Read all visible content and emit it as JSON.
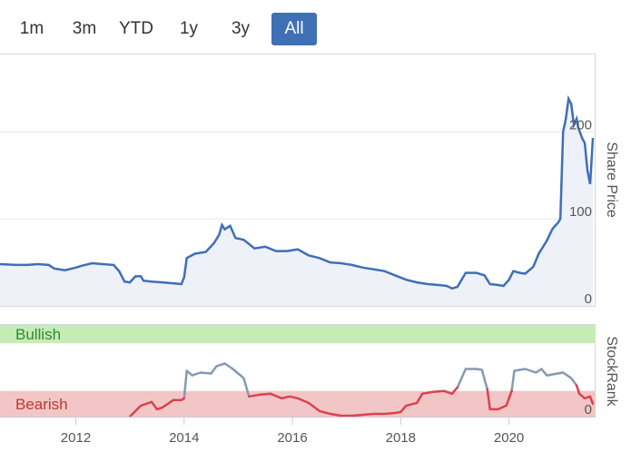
{
  "range_selector": {
    "buttons": [
      "1m",
      "3m",
      "YTD",
      "1y",
      "3y",
      "All"
    ],
    "active": "All",
    "active_color": "#3f6fb5"
  },
  "chart_data": [
    {
      "type": "line",
      "name": "share-price",
      "ylabel": "Share Price",
      "yticks": [
        0,
        100,
        200
      ],
      "ylim": [
        0,
        290
      ],
      "xlim": [
        2010.6,
        2021.6
      ],
      "line_color": "#3f6fb5",
      "fill_color": "#eef1f8",
      "points": [
        [
          2010.6,
          48
        ],
        [
          2010.9,
          47
        ],
        [
          2011.1,
          47
        ],
        [
          2011.3,
          48
        ],
        [
          2011.5,
          47
        ],
        [
          2011.6,
          43
        ],
        [
          2011.8,
          41
        ],
        [
          2012.0,
          44
        ],
        [
          2012.1,
          46
        ],
        [
          2012.3,
          49
        ],
        [
          2012.5,
          48
        ],
        [
          2012.7,
          47
        ],
        [
          2012.8,
          40
        ],
        [
          2012.9,
          28
        ],
        [
          2013.0,
          27
        ],
        [
          2013.1,
          34
        ],
        [
          2013.2,
          34
        ],
        [
          2013.25,
          29
        ],
        [
          2013.4,
          28
        ],
        [
          2013.6,
          27
        ],
        [
          2013.8,
          26
        ],
        [
          2013.95,
          25
        ],
        [
          2014.0,
          33
        ],
        [
          2014.05,
          55
        ],
        [
          2014.2,
          60
        ],
        [
          2014.4,
          62
        ],
        [
          2014.55,
          72
        ],
        [
          2014.65,
          82
        ],
        [
          2014.7,
          93
        ],
        [
          2014.75,
          88
        ],
        [
          2014.85,
          92
        ],
        [
          2014.95,
          78
        ],
        [
          2015.1,
          76
        ],
        [
          2015.3,
          66
        ],
        [
          2015.5,
          68
        ],
        [
          2015.7,
          63
        ],
        [
          2015.9,
          63
        ],
        [
          2016.1,
          65
        ],
        [
          2016.3,
          58
        ],
        [
          2016.5,
          55
        ],
        [
          2016.7,
          50
        ],
        [
          2016.9,
          49
        ],
        [
          2017.1,
          47
        ],
        [
          2017.3,
          44
        ],
        [
          2017.5,
          42
        ],
        [
          2017.7,
          40
        ],
        [
          2017.9,
          35
        ],
        [
          2018.1,
          30
        ],
        [
          2018.3,
          27
        ],
        [
          2018.5,
          25
        ],
        [
          2018.7,
          24
        ],
        [
          2018.85,
          23
        ],
        [
          2018.95,
          20
        ],
        [
          2019.05,
          22
        ],
        [
          2019.2,
          38
        ],
        [
          2019.4,
          38
        ],
        [
          2019.55,
          35
        ],
        [
          2019.65,
          25
        ],
        [
          2019.8,
          24
        ],
        [
          2019.9,
          23
        ],
        [
          2020.0,
          30
        ],
        [
          2020.08,
          40
        ],
        [
          2020.2,
          38
        ],
        [
          2020.3,
          37
        ],
        [
          2020.45,
          45
        ],
        [
          2020.55,
          60
        ],
        [
          2020.7,
          75
        ],
        [
          2020.8,
          88
        ],
        [
          2020.85,
          92
        ],
        [
          2020.9,
          95
        ],
        [
          2020.95,
          100
        ],
        [
          2021.0,
          200
        ],
        [
          2021.05,
          215
        ],
        [
          2021.1,
          238
        ],
        [
          2021.15,
          232
        ],
        [
          2021.2,
          208
        ],
        [
          2021.25,
          215
        ],
        [
          2021.28,
          205
        ],
        [
          2021.35,
          193
        ],
        [
          2021.4,
          187
        ],
        [
          2021.45,
          155
        ],
        [
          2021.5,
          140
        ],
        [
          2021.55,
          193
        ]
      ]
    },
    {
      "type": "line",
      "name": "stockrank",
      "ylabel": "StockRank",
      "yticks": [
        0
      ],
      "ylim": [
        0,
        100
      ],
      "xlim": [
        2010.6,
        2021.6
      ],
      "xticks": [
        "2012",
        "2014",
        "2016",
        "2018",
        "2020"
      ],
      "bands": [
        {
          "label": "Bullish",
          "from": 80,
          "to": 100,
          "color": "#c6ecb6",
          "text_color": "#2e8b2e"
        },
        {
          "label": "Bearish",
          "from": 0,
          "to": 28,
          "color": "#f2c6c6",
          "text_color": "#c0392b"
        }
      ],
      "threshold": 30,
      "above_color": "#8899b0",
      "below_color": "#d9434e",
      "points": [
        [
          2013.0,
          0
        ],
        [
          2013.2,
          12
        ],
        [
          2013.3,
          14
        ],
        [
          2013.4,
          16
        ],
        [
          2013.5,
          8
        ],
        [
          2013.6,
          10
        ],
        [
          2013.7,
          14
        ],
        [
          2013.8,
          18
        ],
        [
          2013.95,
          18
        ],
        [
          2014.0,
          20
        ],
        [
          2014.05,
          50
        ],
        [
          2014.15,
          45
        ],
        [
          2014.3,
          48
        ],
        [
          2014.5,
          47
        ],
        [
          2014.6,
          55
        ],
        [
          2014.75,
          58
        ],
        [
          2014.9,
          52
        ],
        [
          2015.0,
          47
        ],
        [
          2015.1,
          42
        ],
        [
          2015.2,
          22
        ],
        [
          2015.4,
          24
        ],
        [
          2015.6,
          25
        ],
        [
          2015.8,
          20
        ],
        [
          2015.95,
          22
        ],
        [
          2016.1,
          20
        ],
        [
          2016.3,
          15
        ],
        [
          2016.5,
          6
        ],
        [
          2016.7,
          3
        ],
        [
          2016.9,
          1
        ],
        [
          2017.1,
          1
        ],
        [
          2017.3,
          2
        ],
        [
          2017.5,
          3
        ],
        [
          2017.7,
          3
        ],
        [
          2017.9,
          4
        ],
        [
          2018.0,
          5
        ],
        [
          2018.1,
          12
        ],
        [
          2018.3,
          15
        ],
        [
          2018.4,
          25
        ],
        [
          2018.6,
          27
        ],
        [
          2018.8,
          28
        ],
        [
          2018.95,
          25
        ],
        [
          2019.05,
          32
        ],
        [
          2019.2,
          52
        ],
        [
          2019.4,
          52
        ],
        [
          2019.5,
          51
        ],
        [
          2019.6,
          30
        ],
        [
          2019.65,
          8
        ],
        [
          2019.8,
          8
        ],
        [
          2019.95,
          12
        ],
        [
          2020.05,
          28
        ],
        [
          2020.1,
          50
        ],
        [
          2020.3,
          52
        ],
        [
          2020.5,
          48
        ],
        [
          2020.6,
          52
        ],
        [
          2020.7,
          45
        ],
        [
          2020.9,
          47
        ],
        [
          2021.0,
          48
        ],
        [
          2021.15,
          42
        ],
        [
          2021.25,
          34
        ],
        [
          2021.3,
          25
        ],
        [
          2021.4,
          20
        ],
        [
          2021.5,
          22
        ],
        [
          2021.55,
          14
        ]
      ]
    }
  ]
}
